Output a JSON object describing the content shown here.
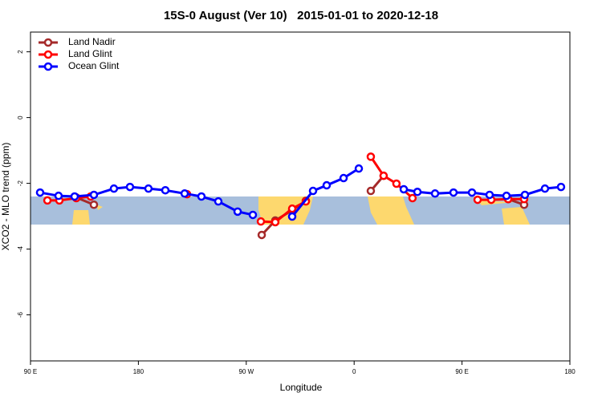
{
  "chart_data": {
    "type": "line",
    "title": "15S-0 August (Ver 10)   2015-01-01 to 2020-12-18",
    "xlabel": "Longitude",
    "ylabel": "XCO2 - MLO trend (ppm)",
    "xlim": [
      90,
      540
    ],
    "ylim": [
      -7.4,
      2.6
    ],
    "xticks": [
      {
        "value": 90,
        "label": "90 E"
      },
      {
        "value": 180,
        "label": "180"
      },
      {
        "value": 270,
        "label": "90 W"
      },
      {
        "value": 360,
        "label": "0"
      },
      {
        "value": 450,
        "label": "90 E"
      },
      {
        "value": 540,
        "label": "180"
      }
    ],
    "yticks": [
      2,
      0,
      -2,
      -4,
      -6
    ],
    "legend": "top-left",
    "series": [
      {
        "name": "Land Nadir",
        "color": "#a52a2a",
        "x": [
          128.2,
          142.9,
          null,
          282.9,
          294.2,
          308.3,
          319.7,
          null,
          373.9,
          384.6,
          null,
          488.5,
          501.8
        ],
        "values": [
          -2.43,
          -2.65,
          null,
          -3.57,
          -3.13,
          -2.82,
          -2.53,
          null,
          -2.23,
          -1.77,
          null,
          -2.48,
          -2.65
        ]
      },
      {
        "name": "Land Glint",
        "color": "#ff0000",
        "x": [
          104.1,
          114.1,
          128.2,
          140.2,
          null,
          220.6,
          null,
          282.2,
          294.2,
          308.3,
          319.7,
          null,
          373.9,
          384.6,
          395.3,
          408.7,
          null,
          463.0,
          474.4,
          488.5,
          501.8
        ],
        "values": [
          -2.52,
          -2.52,
          -2.45,
          -2.4,
          null,
          -2.33,
          null,
          -3.16,
          -3.18,
          -2.77,
          -2.55,
          null,
          -1.19,
          -1.77,
          -2.01,
          -2.45,
          null,
          -2.5,
          -2.5,
          -2.48,
          -2.48
        ]
      },
      {
        "name": "Ocean Glint",
        "color": "#0000ff",
        "x": [
          98.0,
          113.4,
          126.8,
          142.9,
          159.6,
          173.0,
          188.4,
          202.5,
          218.6,
          232.6,
          246.7,
          262.8,
          275.5,
          null,
          308.3,
          325.7,
          337.1,
          351.2,
          363.9,
          null,
          401.4,
          412.8,
          427.5,
          442.9,
          458.3,
          473.0,
          487.1,
          502.5,
          519.2,
          532.6
        ],
        "values": [
          -2.28,
          -2.38,
          -2.4,
          -2.35,
          -2.16,
          -2.11,
          -2.16,
          -2.21,
          -2.31,
          -2.4,
          -2.55,
          -2.86,
          -2.96,
          null,
          -3.01,
          -2.23,
          -2.06,
          -1.84,
          -1.55,
          null,
          -2.18,
          -2.26,
          -2.31,
          -2.28,
          -2.28,
          -2.35,
          -2.38,
          -2.35,
          -2.16,
          -2.11
        ]
      }
    ]
  }
}
